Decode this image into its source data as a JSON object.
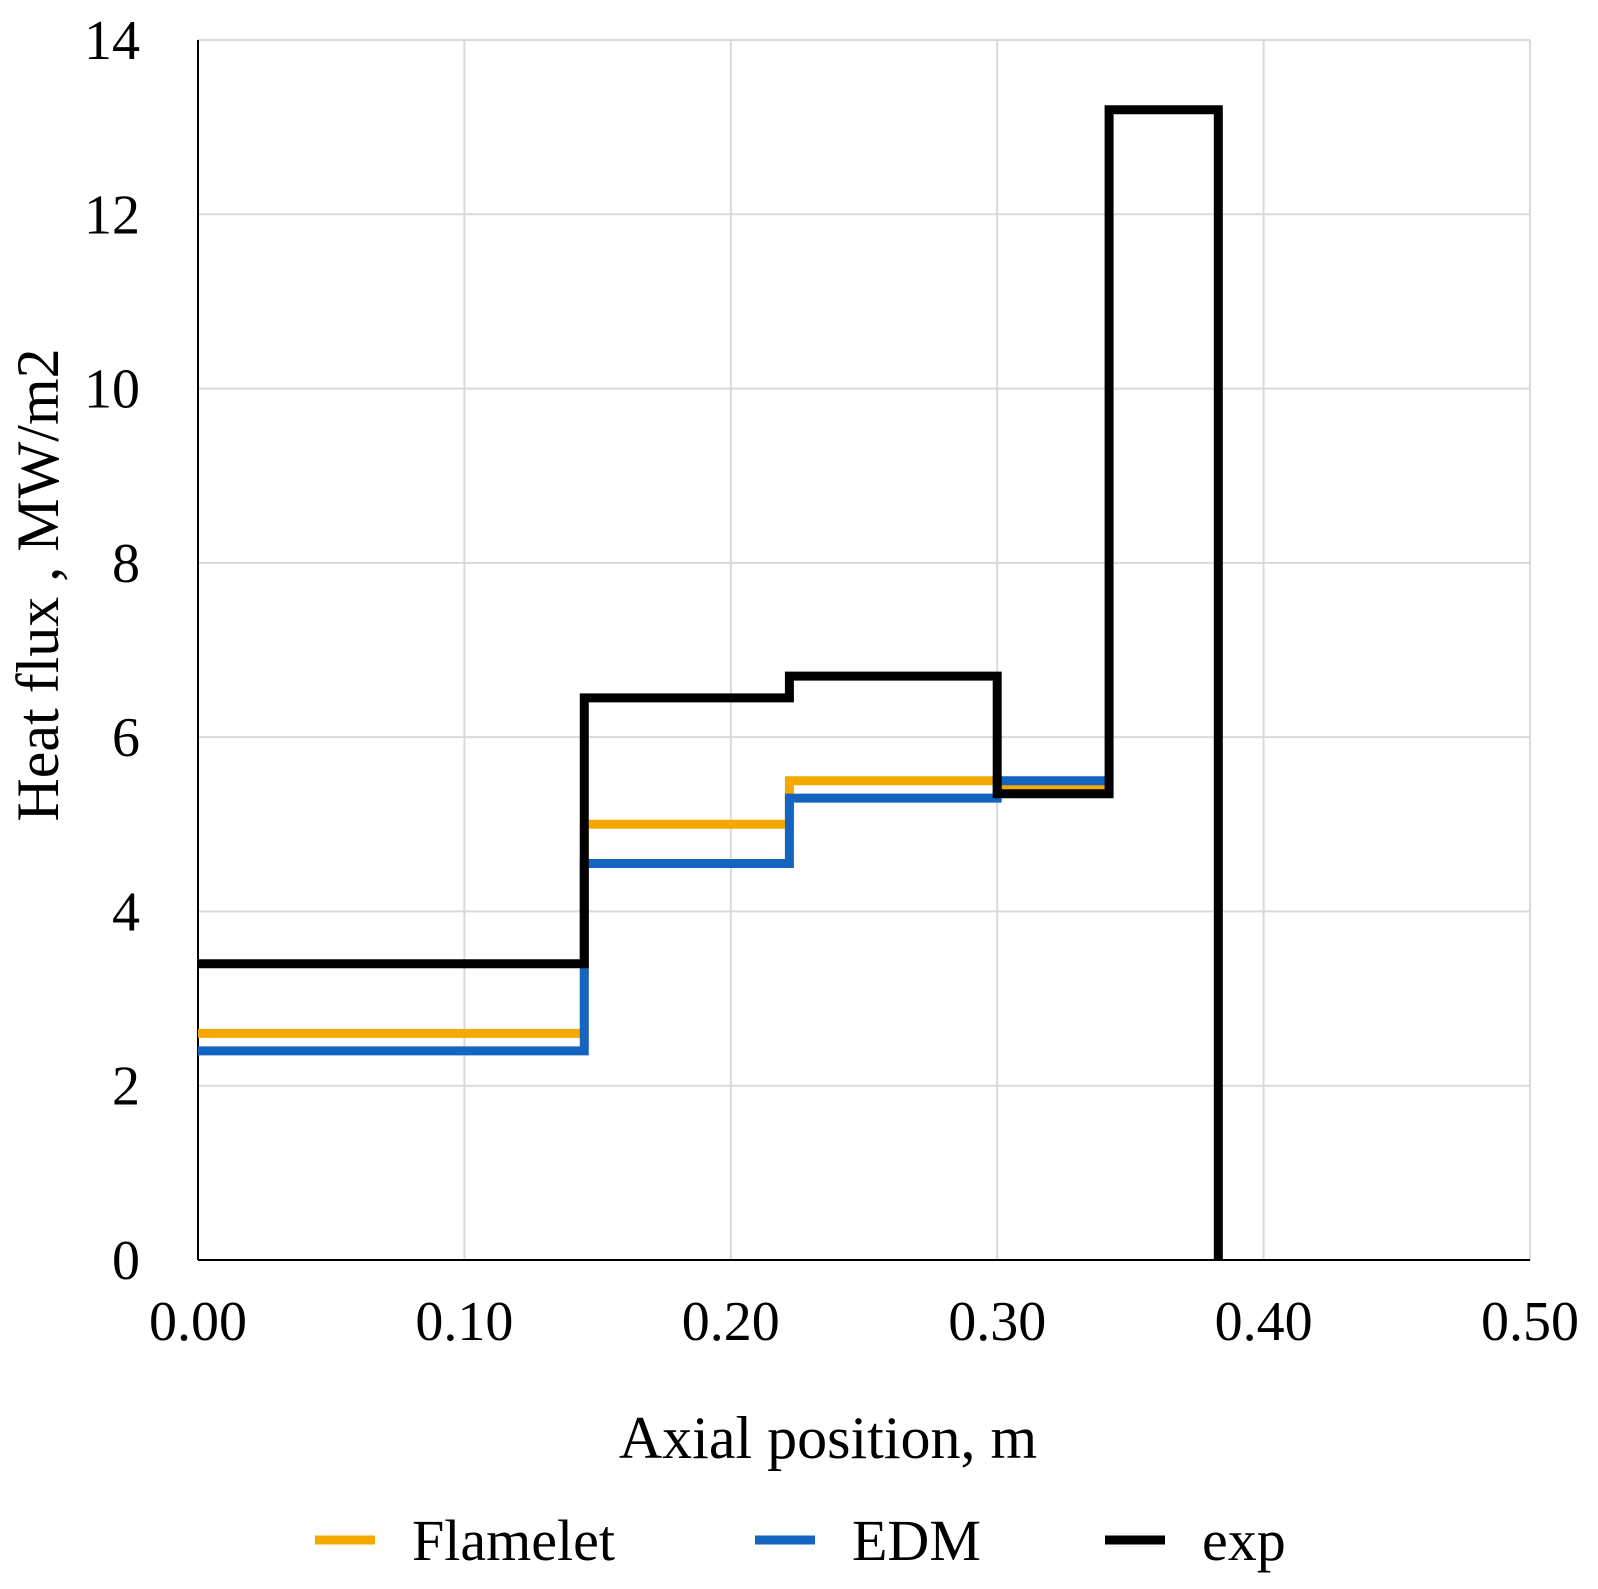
{
  "chart_data": {
    "type": "line",
    "step": true,
    "title": "",
    "xlabel": "Axial position, m",
    "ylabel": "Heat flux , MW/m2",
    "xlim": [
      0,
      0.5
    ],
    "ylim": [
      0,
      14
    ],
    "x_ticks": [
      "0.00",
      "0.10",
      "0.20",
      "0.30",
      "0.40",
      "0.50"
    ],
    "y_ticks": [
      "0",
      "2",
      "4",
      "6",
      "8",
      "10",
      "12",
      "14"
    ],
    "grid": true,
    "legend_position": "bottom",
    "series": [
      {
        "name": "Flamelet",
        "color": "#F5A800",
        "x": [
          0.0,
          0.145,
          0.145,
          0.222,
          0.222,
          0.3,
          0.3,
          0.342
        ],
        "y": [
          2.6,
          2.6,
          5.0,
          5.0,
          5.5,
          5.5,
          5.45,
          5.45
        ]
      },
      {
        "name": "EDM",
        "color": "#1565C0",
        "x": [
          0.0,
          0.145,
          0.145,
          0.222,
          0.222,
          0.3,
          0.3,
          0.342
        ],
        "y": [
          2.4,
          2.4,
          4.55,
          4.55,
          5.3,
          5.3,
          5.5,
          5.5
        ]
      },
      {
        "name": "exp",
        "color": "#000000",
        "x": [
          0.0,
          0.145,
          0.145,
          0.222,
          0.222,
          0.3,
          0.3,
          0.342,
          0.342,
          0.383,
          0.383
        ],
        "y": [
          3.4,
          3.4,
          6.45,
          6.45,
          6.7,
          6.7,
          5.35,
          5.35,
          13.2,
          13.2,
          0.0
        ]
      }
    ]
  }
}
